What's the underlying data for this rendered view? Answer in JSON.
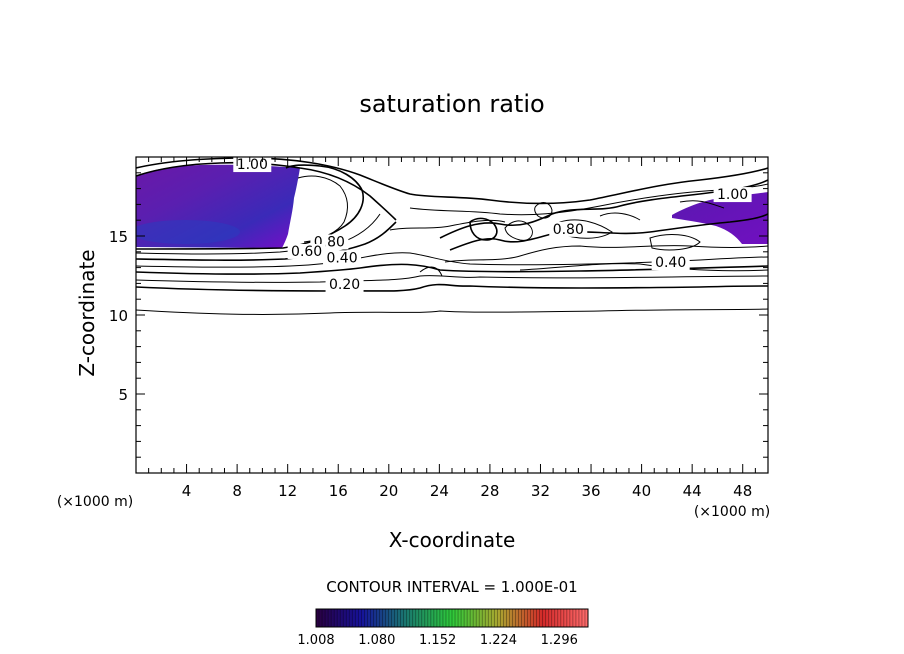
{
  "chart_data": {
    "type": "contour",
    "title": "saturation ratio",
    "xlabel": "X-coordinate",
    "ylabel": "Z-coordinate",
    "x_scale_note": "(×1000 m)",
    "y_scale_note": "(×1000 m)",
    "xlim": [
      0,
      50
    ],
    "ylim": [
      0,
      20
    ],
    "x_ticks": [
      4,
      8,
      12,
      16,
      20,
      24,
      28,
      32,
      36,
      40,
      44,
      48
    ],
    "y_ticks": [
      5,
      10,
      15
    ],
    "contour_interval_text": "CONTOUR INTERVAL = 1.000E-01",
    "contour_labels": [
      {
        "text": "1.00",
        "x": 9.2,
        "z": 19.3
      },
      {
        "text": "1.00",
        "x": 47.2,
        "z": 17.4
      },
      {
        "text": "0.80",
        "x": 15.3,
        "z": 14.4
      },
      {
        "text": "0.60",
        "x": 13.5,
        "z": 13.8
      },
      {
        "text": "0.40",
        "x": 16.3,
        "z": 13.4
      },
      {
        "text": "0.80",
        "x": 34.2,
        "z": 15.2
      },
      {
        "text": "0.40",
        "x": 42.3,
        "z": 13.1
      },
      {
        "text": "0.20",
        "x": 16.5,
        "z": 11.7
      }
    ],
    "colorbar": {
      "min": 1.008,
      "max": 1.33,
      "labels": [
        "1.008",
        "1.080",
        "1.152",
        "1.224",
        "1.296"
      ],
      "colors": [
        "#2a0040",
        "#16129a",
        "#1a7a6e",
        "#2ec93a",
        "#a8a830",
        "#d42a2a",
        "#ff6c6c"
      ]
    },
    "shaded_regions": [
      {
        "name": "supersaturated-left",
        "x_range": [
          0,
          12.8
        ],
        "z_range": [
          14.2,
          19.4
        ]
      },
      {
        "name": "supersaturated-right",
        "x_range": [
          42.5,
          50
        ],
        "z_range": [
          14.3,
          17.8
        ]
      }
    ]
  }
}
